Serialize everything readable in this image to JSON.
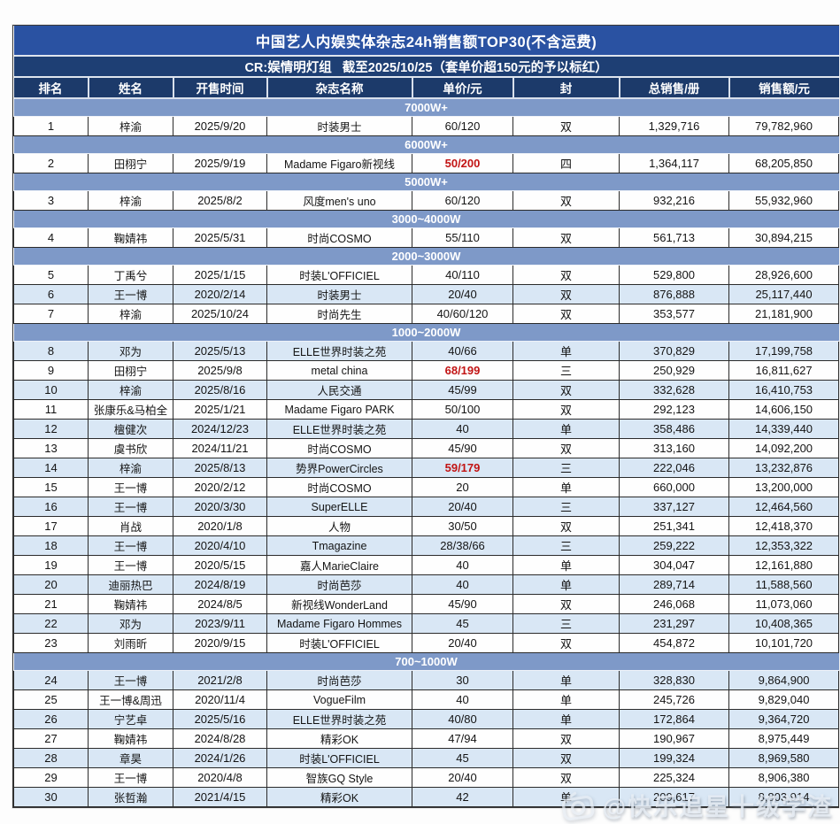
{
  "colors": {
    "title_bg": "#2a52a2",
    "subtitle_bg": "#1e3f74",
    "header_bg": "#1c3a6a",
    "section_bg": "#7e99c8",
    "row_shaded": "#d9e7f5",
    "red_price": "#c21414"
  },
  "watermark": {
    "icon": "weibo-camera-icon",
    "text": "@快乐追星十级学渣"
  },
  "chart_data": {
    "type": "table",
    "title": "中国艺人内娱实体杂志24h销售额TOP30(不含运费)",
    "subtitle": "CR:娱情明灯组   截至2025/10/25（套单价超150元的予以标红）",
    "columns": [
      "排名",
      "姓名",
      "开售时间",
      "杂志名称",
      "单价/元",
      "封",
      "总销售/册",
      "销售额/元"
    ],
    "red_note": "套单价超150元的予以标红",
    "sections": [
      {
        "label": "7000W+",
        "rows": [
          {
            "rank": "1",
            "name": "梓渝",
            "date": "2025/9/20",
            "magazine": "时装男士",
            "price": "60/120",
            "red": false,
            "cover": "双",
            "copies": "1,329,716",
            "amount": "79,782,960",
            "shaded": false
          }
        ]
      },
      {
        "label": "6000W+",
        "rows": [
          {
            "rank": "2",
            "name": "田栩宁",
            "date": "2025/9/19",
            "magazine": "Madame Figaro新视线",
            "price": "50/200",
            "red": true,
            "cover": "四",
            "copies": "1,364,117",
            "amount": "68,205,850",
            "shaded": false
          }
        ]
      },
      {
        "label": "5000W+",
        "rows": [
          {
            "rank": "3",
            "name": "梓渝",
            "date": "2025/8/2",
            "magazine": "风度men's uno",
            "price": "60/120",
            "red": false,
            "cover": "双",
            "copies": "932,216",
            "amount": "55,932,960",
            "shaded": false
          }
        ]
      },
      {
        "label": "3000~4000W",
        "rows": [
          {
            "rank": "4",
            "name": "鞠婧祎",
            "date": "2025/5/31",
            "magazine": "时尚COSMO",
            "price": "55/110",
            "red": false,
            "cover": "双",
            "copies": "561,713",
            "amount": "30,894,215",
            "shaded": false
          }
        ]
      },
      {
        "label": "2000~3000W",
        "rows": [
          {
            "rank": "5",
            "name": "丁禹兮",
            "date": "2025/1/15",
            "magazine": "时装L'OFFICIEL",
            "price": "40/110",
            "red": false,
            "cover": "双",
            "copies": "529,800",
            "amount": "28,926,600",
            "shaded": false
          },
          {
            "rank": "6",
            "name": "王一博",
            "date": "2020/2/14",
            "magazine": "时装男士",
            "price": "20/40",
            "red": false,
            "cover": "双",
            "copies": "876,888",
            "amount": "25,117,440",
            "shaded": true
          },
          {
            "rank": "7",
            "name": "梓渝",
            "date": "2025/10/24",
            "magazine": "时尚先生",
            "price": "40/60/120",
            "red": false,
            "cover": "双",
            "copies": "353,577",
            "amount": "21,181,900",
            "shaded": false
          }
        ]
      },
      {
        "label": "1000~2000W",
        "rows": [
          {
            "rank": "8",
            "name": "邓为",
            "date": "2025/5/13",
            "magazine": "ELLE世界时装之苑",
            "price": "40/66",
            "red": false,
            "cover": "单",
            "copies": "370,829",
            "amount": "17,199,758",
            "shaded": true
          },
          {
            "rank": "9",
            "name": "田栩宁",
            "date": "2025/9/8",
            "magazine": "metal china",
            "price": "68/199",
            "red": true,
            "cover": "三",
            "copies": "250,929",
            "amount": "16,811,627",
            "shaded": false
          },
          {
            "rank": "10",
            "name": "梓渝",
            "date": "2025/8/16",
            "magazine": "人民交通",
            "price": "45/99",
            "red": false,
            "cover": "双",
            "copies": "332,628",
            "amount": "16,410,753",
            "shaded": true
          },
          {
            "rank": "11",
            "name": "张康乐&马柏全",
            "date": "2025/1/21",
            "magazine": "Madame Figaro PARK",
            "price": "50/100",
            "red": false,
            "cover": "双",
            "copies": "292,123",
            "amount": "14,606,150",
            "shaded": false
          },
          {
            "rank": "12",
            "name": "檀健次",
            "date": "2024/12/23",
            "magazine": "ELLE世界时装之苑",
            "price": "40",
            "red": false,
            "cover": "单",
            "copies": "358,486",
            "amount": "14,339,440",
            "shaded": true
          },
          {
            "rank": "13",
            "name": "虞书欣",
            "date": "2024/11/21",
            "magazine": "时尚COSMO",
            "price": "45/90",
            "red": false,
            "cover": "双",
            "copies": "313,160",
            "amount": "14,092,200",
            "shaded": false
          },
          {
            "rank": "14",
            "name": "梓渝",
            "date": "2025/8/13",
            "magazine": "势界PowerCircles",
            "price": "59/179",
            "red": true,
            "cover": "三",
            "copies": "222,046",
            "amount": "13,232,876",
            "shaded": true
          },
          {
            "rank": "15",
            "name": "王一博",
            "date": "2020/2/12",
            "magazine": "时尚COSMO",
            "price": "20",
            "red": false,
            "cover": "单",
            "copies": "660,000",
            "amount": "13,200,000",
            "shaded": false
          },
          {
            "rank": "16",
            "name": "王一博",
            "date": "2020/3/30",
            "magazine": "SuperELLE",
            "price": "20/40",
            "red": false,
            "cover": "三",
            "copies": "337,127",
            "amount": "12,464,560",
            "shaded": true
          },
          {
            "rank": "17",
            "name": "肖战",
            "date": "2020/1/8",
            "magazine": "人物",
            "price": "30/50",
            "red": false,
            "cover": "双",
            "copies": "251,341",
            "amount": "12,418,370",
            "shaded": false
          },
          {
            "rank": "18",
            "name": "王一博",
            "date": "2020/4/10",
            "magazine": "Tmagazine",
            "price": "28/38/66",
            "red": false,
            "cover": "三",
            "copies": "259,222",
            "amount": "12,353,322",
            "shaded": true
          },
          {
            "rank": "19",
            "name": "王一博",
            "date": "2020/5/15",
            "magazine": "嘉人MarieClaire",
            "price": "40",
            "red": false,
            "cover": "单",
            "copies": "304,047",
            "amount": "12,161,880",
            "shaded": false
          },
          {
            "rank": "20",
            "name": "迪丽热巴",
            "date": "2024/8/19",
            "magazine": "时尚芭莎",
            "price": "40",
            "red": false,
            "cover": "单",
            "copies": "289,714",
            "amount": "11,588,560",
            "shaded": true
          },
          {
            "rank": "21",
            "name": "鞠婧祎",
            "date": "2024/8/5",
            "magazine": "新视线WonderLand",
            "price": "45/90",
            "red": false,
            "cover": "双",
            "copies": "246,068",
            "amount": "11,073,060",
            "shaded": false
          },
          {
            "rank": "22",
            "name": "邓为",
            "date": "2023/9/11",
            "magazine": "Madame Figaro Hommes",
            "price": "45",
            "red": false,
            "cover": "三",
            "copies": "231,297",
            "amount": "10,408,365",
            "shaded": true
          },
          {
            "rank": "23",
            "name": "刘雨昕",
            "date": "2020/9/15",
            "magazine": "时装L'OFFICIEL",
            "price": "20/40",
            "red": false,
            "cover": "双",
            "copies": "454,872",
            "amount": "10,101,720",
            "shaded": false
          }
        ]
      },
      {
        "label": "700~1000W",
        "rows": [
          {
            "rank": "24",
            "name": "王一博",
            "date": "2021/2/8",
            "magazine": "时尚芭莎",
            "price": "30",
            "red": false,
            "cover": "单",
            "copies": "328,830",
            "amount": "9,864,900",
            "shaded": true
          },
          {
            "rank": "25",
            "name": "王一博&周迅",
            "date": "2020/11/4",
            "magazine": "VogueFilm",
            "price": "40",
            "red": false,
            "cover": "单",
            "copies": "245,726",
            "amount": "9,829,040",
            "shaded": false
          },
          {
            "rank": "26",
            "name": "宁艺卓",
            "date": "2025/5/16",
            "magazine": "ELLE世界时装之苑",
            "price": "40/80",
            "red": false,
            "cover": "单",
            "copies": "172,864",
            "amount": "9,364,720",
            "shaded": true
          },
          {
            "rank": "27",
            "name": "鞠婧祎",
            "date": "2024/8/28",
            "magazine": "精彩OK",
            "price": "47/94",
            "red": false,
            "cover": "双",
            "copies": "190,967",
            "amount": "8,975,449",
            "shaded": false
          },
          {
            "rank": "28",
            "name": "章昊",
            "date": "2024/1/26",
            "magazine": "时装L'OFFICIEL",
            "price": "45",
            "red": false,
            "cover": "双",
            "copies": "199,324",
            "amount": "8,969,580",
            "shaded": true
          },
          {
            "rank": "29",
            "name": "王一博",
            "date": "2020/4/8",
            "magazine": "智族GQ Style",
            "price": "20/40",
            "red": false,
            "cover": "双",
            "copies": "225,324",
            "amount": "8,906,380",
            "shaded": false
          },
          {
            "rank": "30",
            "name": "张哲瀚",
            "date": "2021/4/15",
            "magazine": "精彩OK",
            "price": "42",
            "red": false,
            "cover": "单",
            "copies": "209,617",
            "amount": "8,803,914",
            "shaded": true
          }
        ]
      }
    ]
  }
}
